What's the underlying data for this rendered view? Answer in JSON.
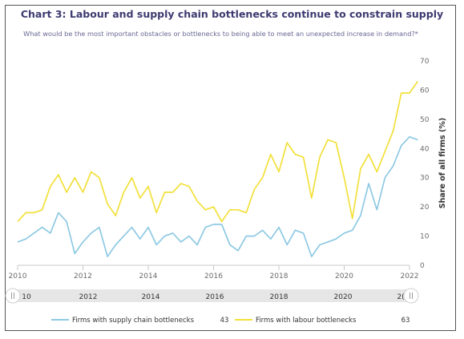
{
  "chart_data": {
    "type": "line",
    "title": "Chart 3: Labour and supply chain bottlenecks continue to constrain supply",
    "subtitle": "What would be the most important obstacles or bottlenecks to being able to meet an unexpected increase in demand?*",
    "ylabel": "Share of all firms (%)",
    "xlabel": "",
    "ylim": [
      0,
      70
    ],
    "y_ticks": [
      0,
      10,
      20,
      30,
      40,
      50,
      60,
      70
    ],
    "xlim": [
      2010,
      2022
    ],
    "x_ticks": [
      "2010",
      "2012",
      "2014",
      "2016",
      "2018",
      "2020",
      "2022"
    ],
    "grid": false,
    "legend_position": "bottom",
    "x": [
      2010.0,
      2010.25,
      2010.5,
      2010.75,
      2011.0,
      2011.25,
      2011.5,
      2011.75,
      2012.0,
      2012.25,
      2012.5,
      2012.75,
      2013.0,
      2013.25,
      2013.5,
      2013.75,
      2014.0,
      2014.25,
      2014.5,
      2014.75,
      2015.0,
      2015.25,
      2015.5,
      2015.75,
      2016.0,
      2016.25,
      2016.5,
      2016.75,
      2017.0,
      2017.25,
      2017.5,
      2017.75,
      2018.0,
      2018.25,
      2018.5,
      2018.75,
      2019.0,
      2019.25,
      2019.5,
      2019.75,
      2020.0,
      2020.25,
      2020.5,
      2020.75,
      2021.0,
      2021.25,
      2021.5,
      2021.75,
      2022.0,
      2022.25
    ],
    "series": [
      {
        "name": "Firms with supply chain bottlenecks",
        "color": "#8ec9e3",
        "last_value": "43",
        "values": [
          8,
          9,
          11,
          13,
          11,
          18,
          15,
          4,
          8,
          11,
          13,
          3,
          7,
          10,
          13,
          9,
          13,
          7,
          10,
          11,
          8,
          10,
          7,
          13,
          14,
          14,
          7,
          5,
          10,
          10,
          12,
          9,
          13,
          7,
          12,
          11,
          3,
          7,
          8,
          9,
          11,
          12,
          17,
          28,
          19,
          30,
          34,
          41,
          44,
          43
        ]
      },
      {
        "name": "Firms with labour bottlenecks",
        "color": "#f2e03a",
        "last_value": "63",
        "values": [
          15,
          18,
          18,
          19,
          27,
          31,
          25,
          30,
          25,
          32,
          30,
          21,
          17,
          25,
          30,
          23,
          27,
          18,
          25,
          25,
          28,
          27,
          22,
          19,
          20,
          15,
          19,
          19,
          18,
          26,
          30,
          38,
          32,
          42,
          38,
          37,
          23,
          37,
          43,
          42,
          30,
          16,
          33,
          38,
          32,
          39,
          46,
          59,
          59,
          63
        ]
      }
    ]
  },
  "navigator": {
    "labels": [
      "10",
      "2012",
      "2014",
      "2016",
      "2018",
      "2020",
      "2("
    ],
    "left_handle_icon": "scroll-handle-icon",
    "right_handle_icon": "scroll-handle-icon"
  }
}
